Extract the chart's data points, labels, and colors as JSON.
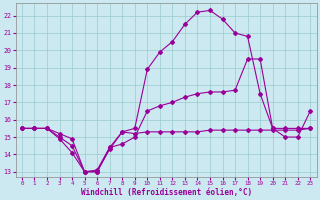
{
  "xlabel": "Windchill (Refroidissement éolien,°C)",
  "bg_color": "#cce8f0",
  "line_color": "#990099",
  "grid_color": "#99cccc",
  "xlim": [
    -0.5,
    23.5
  ],
  "ylim": [
    12.7,
    22.7
  ],
  "yticks": [
    13,
    14,
    15,
    16,
    17,
    18,
    19,
    20,
    21,
    22
  ],
  "xticks": [
    0,
    1,
    2,
    3,
    4,
    5,
    6,
    7,
    8,
    9,
    10,
    11,
    12,
    13,
    14,
    15,
    16,
    17,
    18,
    19,
    20,
    21,
    22,
    23
  ],
  "curve1_x": [
    0,
    1,
    2,
    3,
    4,
    5,
    6,
    7,
    8,
    9,
    10,
    11,
    12,
    13,
    14,
    15,
    16,
    17,
    18,
    19,
    20,
    21,
    22,
    23
  ],
  "curve1_y": [
    15.5,
    15.5,
    15.5,
    14.9,
    14.1,
    13.0,
    13.1,
    14.4,
    15.3,
    15.5,
    18.9,
    19.9,
    20.5,
    21.5,
    22.2,
    22.3,
    21.8,
    21.0,
    20.8,
    17.5,
    15.5,
    15.0,
    15.0,
    16.5
  ],
  "curve2_x": [
    0,
    1,
    2,
    3,
    4,
    5,
    6,
    7,
    8,
    9,
    10,
    11,
    12,
    13,
    14,
    15,
    16,
    17,
    18,
    19,
    20,
    21,
    22,
    23
  ],
  "curve2_y": [
    15.5,
    15.5,
    15.5,
    15.2,
    14.9,
    13.0,
    13.0,
    14.4,
    14.6,
    15.0,
    16.5,
    16.8,
    17.0,
    17.3,
    17.5,
    17.6,
    17.6,
    17.7,
    19.5,
    19.5,
    15.5,
    15.5,
    15.5,
    15.5
  ],
  "curve3_x": [
    0,
    1,
    2,
    3,
    4,
    5,
    6,
    7,
    8,
    9,
    10,
    11,
    12,
    13,
    14,
    15,
    16,
    17,
    18,
    19,
    20,
    21,
    22,
    23
  ],
  "curve3_y": [
    15.5,
    15.5,
    15.5,
    15.0,
    14.5,
    13.0,
    13.0,
    14.3,
    15.3,
    15.2,
    15.3,
    15.3,
    15.3,
    15.3,
    15.3,
    15.4,
    15.4,
    15.4,
    15.4,
    15.4,
    15.4,
    15.4,
    15.4,
    15.5
  ]
}
